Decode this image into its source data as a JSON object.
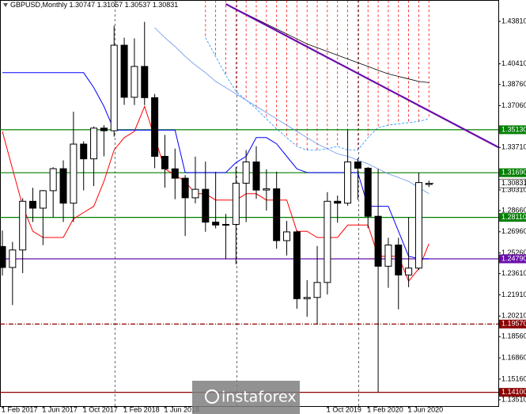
{
  "chart_data": {
    "type": "candlestick",
    "symbol": "GBPUSD,Monthly",
    "watermark": "instaforex",
    "categories": [
      "1 Feb 2017",
      null,
      null,
      null,
      "1 Jun 2017",
      null,
      null,
      null,
      "1 Oct 2017",
      null,
      null,
      null,
      "1 Feb 2018",
      null,
      null,
      null,
      "1 Jun 2018",
      null,
      null,
      null,
      null,
      null,
      null,
      null,
      null,
      null,
      null,
      null,
      null,
      null,
      null,
      null,
      "1 Oct 2019",
      null,
      null,
      null,
      "1 Feb 2020",
      null,
      null,
      null,
      "1 Jun 2020",
      null,
      null
    ],
    "open": [
      1.2578,
      1.241,
      1.255,
      1.294,
      1.2885,
      1.3025,
      1.3201,
      1.2925,
      1.3398,
      1.328,
      1.3526,
      1.3505,
      1.419,
      1.3773,
      1.402,
      1.377,
      1.33,
      1.32,
      1.3125,
      1.2968,
      1.3036,
      1.2773,
      1.275,
      1.2755,
      1.3085,
      1.3255,
      1.303,
      1.304,
      1.2625,
      1.2695,
      1.216,
      1.217,
      1.229,
      1.294,
      1.2925,
      1.3255,
      1.3205,
      1.282,
      1.242,
      1.259,
      1.235,
      1.2405,
      1.30747
    ],
    "high": [
      1.2706,
      1.2615,
      1.2965,
      1.3048,
      1.303,
      1.3213,
      1.3268,
      1.3657,
      1.342,
      1.3539,
      1.355,
      1.4345,
      1.425,
      1.4245,
      1.4377,
      1.38,
      1.3472,
      1.3362,
      1.315,
      1.3298,
      1.3258,
      1.3176,
      1.2839,
      1.3214,
      1.335,
      1.3381,
      1.3196,
      1.3177,
      1.2783,
      1.2708,
      1.2309,
      1.2582,
      1.3013,
      1.2986,
      1.3514,
      1.3284,
      1.3215,
      1.32,
      1.2648,
      1.2647,
      1.2813,
      1.317,
      1.31057
    ],
    "low": [
      1.2345,
      1.2109,
      1.2365,
      1.2774,
      1.2589,
      1.2812,
      1.2774,
      1.2775,
      1.3027,
      1.3062,
      1.33,
      1.3458,
      1.3712,
      1.3711,
      1.3711,
      1.3205,
      1.305,
      1.2957,
      1.2662,
      1.2923,
      1.2696,
      1.2723,
      1.2477,
      1.2436,
      1.2773,
      1.296,
      1.2866,
      1.256,
      1.2506,
      1.208,
      1.2015,
      1.1958,
      1.2194,
      1.2768,
      1.2905,
      1.2953,
      1.2725,
      1.141,
      1.2247,
      1.2075,
      1.2252,
      1.239,
      1.30537
    ],
    "close": [
      1.241,
      1.255,
      1.294,
      1.2885,
      1.3025,
      1.3201,
      1.2925,
      1.3398,
      1.328,
      1.3526,
      1.3505,
      1.419,
      1.3773,
      1.402,
      1.377,
      1.33,
      1.32,
      1.3125,
      1.2968,
      1.3036,
      1.2773,
      1.275,
      1.2755,
      1.3085,
      1.3255,
      1.303,
      1.304,
      1.2625,
      1.2695,
      1.216,
      1.217,
      1.229,
      1.294,
      1.2925,
      1.3255,
      1.3205,
      1.282,
      1.242,
      1.259,
      1.235,
      1.2405,
      1.309,
      1.30831
    ],
    "series": [
      {
        "color": "#ff0000",
        "width": 1,
        "values": [
          1.35,
          1.32,
          1.29,
          1.27,
          1.265,
          1.265,
          1.265,
          1.28,
          1.285,
          1.29,
          1.31,
          1.335,
          1.345,
          1.35,
          1.37,
          1.345,
          1.32,
          1.315,
          1.31,
          1.3,
          1.3,
          1.295,
          1.295,
          1.295,
          1.3,
          1.3,
          1.295,
          1.295,
          1.295,
          1.27,
          1.27,
          1.265,
          1.265,
          1.265,
          1.275,
          1.275,
          1.275,
          1.25,
          1.25,
          1.25,
          1.23,
          1.24,
          1.26
        ]
      },
      {
        "color": "#0000ff",
        "width": 1,
        "values": [
          1.397,
          1.397,
          1.397,
          1.397,
          1.397,
          1.397,
          1.397,
          1.397,
          1.397,
          1.385,
          1.37,
          1.351,
          1.351,
          1.351,
          1.351,
          1.351,
          1.351,
          1.351,
          1.317,
          1.317,
          1.317,
          1.317,
          1.317,
          1.325,
          1.33,
          1.345,
          1.345,
          1.34,
          1.33,
          1.32,
          1.317,
          1.317,
          1.317,
          1.317,
          1.317,
          1.317,
          1.29,
          1.29,
          1.29,
          1.27,
          1.25,
          1.248,
          1.248
        ]
      },
      {
        "color": "#6495ed",
        "width": 0.8,
        "values": [
          null,
          null,
          null,
          null,
          null,
          null,
          null,
          null,
          null,
          null,
          null,
          null,
          null,
          null,
          null,
          1.433,
          1.425,
          1.418,
          1.41,
          1.403,
          1.397,
          1.39,
          1.385,
          1.38,
          1.375,
          1.37,
          1.365,
          1.36,
          1.355,
          1.35,
          1.345,
          1.34,
          1.336,
          1.332,
          1.33,
          1.327,
          1.324,
          1.32,
          1.316,
          1.313,
          1.31,
          1.305,
          1.3
        ]
      },
      {
        "color": "#000000",
        "width": 0.8,
        "values": [
          null,
          null,
          null,
          null,
          null,
          null,
          null,
          null,
          null,
          null,
          null,
          null,
          null,
          null,
          null,
          null,
          null,
          null,
          null,
          null,
          null,
          null,
          1.452,
          1.448,
          1.444,
          1.44,
          1.436,
          1.432,
          1.428,
          1.424,
          1.42,
          1.417,
          1.414,
          1.411,
          1.408,
          1.405,
          1.402,
          1.399,
          1.396,
          1.394,
          1.392,
          1.39,
          1.389
        ]
      }
    ],
    "cloud": {
      "color": "#ff0000",
      "edge_color": "#1e90ff",
      "top": [
        null,
        null,
        null,
        null,
        null,
        null,
        null,
        null,
        null,
        null,
        null,
        null,
        null,
        null,
        null,
        null,
        null,
        null,
        null,
        null,
        1.455,
        1.455,
        1.455,
        1.455,
        1.455,
        1.455,
        1.455,
        1.455,
        1.455,
        1.455,
        1.455,
        1.455,
        1.455,
        1.455,
        1.455,
        1.455,
        1.455,
        1.455,
        1.455,
        1.455,
        1.455,
        1.455,
        1.455
      ],
      "bottom": [
        null,
        null,
        null,
        null,
        null,
        null,
        null,
        null,
        null,
        null,
        null,
        null,
        null,
        null,
        null,
        null,
        null,
        null,
        null,
        null,
        1.425,
        1.41,
        1.395,
        1.382,
        1.375,
        1.368,
        1.36,
        1.352,
        1.345,
        1.338,
        1.335,
        1.335,
        1.336,
        1.338,
        1.335,
        1.335,
        1.345,
        1.353,
        1.355,
        1.356,
        1.357,
        1.358,
        1.36
      ]
    },
    "trendline": {
      "color": "#6a0dad",
      "from": [
        22,
        1.452
      ],
      "to": [
        42,
        1.3665
      ]
    },
    "levels": [
      {
        "value": 1.3513,
        "label": "1.35130",
        "color": "#008000",
        "style": "solid"
      },
      {
        "value": 1.3169,
        "label": "1.31690",
        "color": "#008000",
        "style": "solid"
      },
      {
        "value": 1.2811,
        "label": "1.28110",
        "color": "#008000",
        "style": "solid"
      },
      {
        "value": 1.2479,
        "label": "1.24790",
        "color": "#6a0dad",
        "style": "solid"
      },
      {
        "value": 1.1957,
        "label": "1.19570",
        "color": "#8b0000",
        "style": "dashdot"
      },
      {
        "value": 1.141,
        "label": "1.14100",
        "color": "#8b0000",
        "style": "solid"
      }
    ],
    "ylim": [
      1.13,
      1.4552
    ],
    "yticks": [
      {
        "value": 1.4381,
        "label": "1.43810"
      },
      {
        "value": 1.4041,
        "label": "1.40410"
      },
      {
        "value": 1.3876,
        "label": "1.38760"
      },
      {
        "value": 1.3706,
        "label": "1.37060"
      },
      {
        "value": 1.3371,
        "label": "1.33710"
      },
      {
        "value": 1.3031,
        "label": "1.30310"
      },
      {
        "value": 1.2866,
        "label": "1.28660"
      },
      {
        "value": 1.2696,
        "label": "1.26960"
      },
      {
        "value": 1.2526,
        "label": "1.25260"
      },
      {
        "value": 1.2361,
        "label": "1.23610"
      },
      {
        "value": 1.2191,
        "label": "1.21910"
      },
      {
        "value": 1.2021,
        "label": "1.20210"
      },
      {
        "value": 1.1856,
        "label": "1.18560"
      },
      {
        "value": 1.1686,
        "label": "1.16860"
      },
      {
        "value": 1.1516,
        "label": "1.15160"
      },
      {
        "value": 1.1351,
        "label": "1.13510"
      }
    ]
  }
}
